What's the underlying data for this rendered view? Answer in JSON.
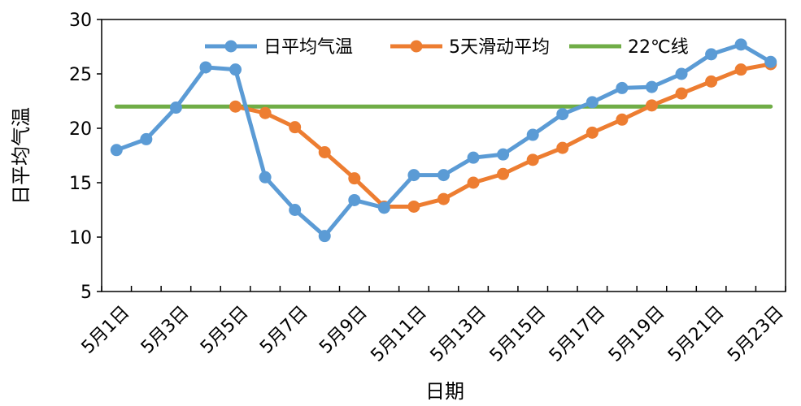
{
  "chart_data": {
    "type": "line",
    "xlabel": "日期",
    "ylabel": "日平均气温",
    "ylim": [
      5,
      30
    ],
    "yticks": [
      5,
      10,
      15,
      20,
      25,
      30
    ],
    "grid": false,
    "legend_position": "top",
    "categories": [
      "5月1日",
      "5月2日",
      "5月3日",
      "5月4日",
      "5月5日",
      "5月6日",
      "5月7日",
      "5月8日",
      "5月9日",
      "5月10日",
      "5月11日",
      "5月12日",
      "5月13日",
      "5月14日",
      "5月15日",
      "5月16日",
      "5月17日",
      "5月18日",
      "5月19日",
      "5月20日",
      "5月21日",
      "5月22日",
      "5月23日"
    ],
    "xtick_labels": [
      "5月1日",
      "5月3日",
      "5月5日",
      "5月7日",
      "5月9日",
      "5月11日",
      "5月13日",
      "5月15日",
      "5月17日",
      "5月19日",
      "5月21日",
      "5月23日"
    ],
    "series": [
      {
        "name": "日平均气温",
        "color": "#5B9BD5",
        "marker": true,
        "values": [
          18.0,
          19.0,
          21.9,
          25.6,
          25.4,
          15.5,
          12.5,
          10.1,
          13.4,
          12.7,
          15.7,
          15.7,
          17.3,
          17.6,
          19.4,
          21.3,
          22.4,
          23.7,
          23.8,
          25.0,
          26.8,
          27.7,
          26.1
        ]
      },
      {
        "name": "5天滑动平均",
        "color": "#ED7D31",
        "marker": true,
        "values": [
          null,
          null,
          null,
          null,
          22.0,
          21.4,
          20.1,
          17.8,
          15.4,
          12.8,
          12.8,
          13.5,
          15.0,
          15.8,
          17.1,
          18.2,
          19.6,
          20.8,
          22.1,
          23.2,
          24.3,
          25.4,
          25.9
        ]
      },
      {
        "name": "22℃线",
        "color": "#70AD47",
        "marker": false,
        "values": [
          22,
          22,
          22,
          22,
          22,
          22,
          22,
          22,
          22,
          22,
          22,
          22,
          22,
          22,
          22,
          22,
          22,
          22,
          22,
          22,
          22,
          22,
          22
        ]
      }
    ]
  }
}
